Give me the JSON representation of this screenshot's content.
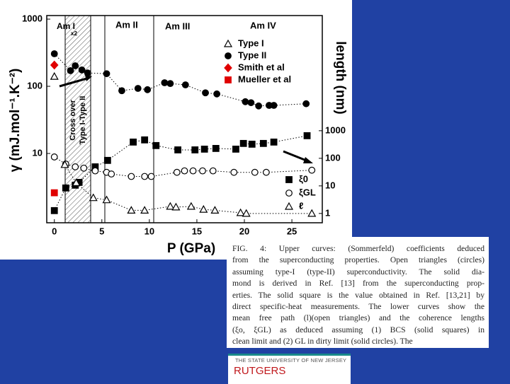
{
  "chart_data": {
    "type": "scatter",
    "y_label": "γ (mJ.mol⁻¹.K⁻²)",
    "y2_label": "length (nm)",
    "x_label": "P (GPa)",
    "annotations": [
      "Am I",
      "Am II",
      "Am III",
      "Am IV",
      "x2",
      "Cross over",
      "Type I-Type II"
    ],
    "xlim": [
      -0.8,
      28.2
    ],
    "xticks": [
      0,
      5,
      10,
      15,
      20,
      25
    ],
    "ylim": [
      0.93,
      1130
    ],
    "yticks": [
      10,
      100,
      1000
    ],
    "ylog": true,
    "y2lim": [
      0.46,
      15000000
    ],
    "y2ticks": [
      1,
      10,
      100,
      1000
    ],
    "y2log": true,
    "series": [
      {
        "name": "Type I",
        "marker": "triangle",
        "filled": false,
        "color": "#000000",
        "line": true,
        "x": [
          0
        ],
        "values": [
          140
        ]
      },
      {
        "name": "Type II",
        "marker": "circle",
        "filled": true,
        "color": "#000000",
        "line": true,
        "x": [
          0,
          1.7,
          2.2,
          2.9,
          3.5,
          5.5,
          7.1,
          8.8,
          9.8,
          11.6,
          12.2,
          13.8,
          15.9,
          17.1,
          20.1,
          20.7,
          21.5,
          22.6,
          23.1,
          26.5
        ],
        "values": [
          305,
          171,
          202,
          175,
          158,
          154,
          86,
          93,
          89,
          113,
          110,
          105,
          80,
          77,
          59,
          57,
          51,
          52,
          52,
          55
        ]
      },
      {
        "name": "Smith et al",
        "marker": "diamond",
        "filled": true,
        "color": "#e00000",
        "line": false,
        "x": [
          0
        ],
        "values": [
          207
        ]
      },
      {
        "name": "Mueller et al",
        "marker": "square",
        "filled": true,
        "color": "#e00000",
        "line": false,
        "x": [
          0
        ],
        "values": [
          2.6
        ]
      },
      {
        "name": "ξ0",
        "marker": "square",
        "filled": true,
        "color": "#000000",
        "line": true,
        "axis": "y2",
        "x": [
          0,
          1.2,
          2.2,
          2.6,
          4.3,
          5.6,
          8.3,
          9.5,
          10.7,
          13.0,
          14.8,
          15.8,
          17.0,
          19.1,
          19.9,
          20.8,
          22.0,
          23.1,
          26.6
        ],
        "values": [
          1.27,
          8.4,
          10.6,
          13.4,
          49,
          84,
          388,
          465,
          290,
          202,
          202,
          215,
          228,
          215,
          346,
          325,
          346,
          388,
          660
        ]
      },
      {
        "name": "ξGL",
        "marker": "circle",
        "filled": false,
        "color": "#000000",
        "line": true,
        "axis": "y2",
        "x": [
          0,
          1.2,
          2.2,
          3.1,
          4.3,
          5.5,
          6.0,
          8.1,
          9.5,
          10.2,
          12.9,
          13.7,
          14.6,
          15.6,
          16.7,
          18.9,
          21.1,
          22.3,
          27.1
        ],
        "values": [
          112,
          62,
          49,
          44,
          35,
          31,
          27,
          22,
          22,
          22,
          31,
          35,
          35,
          35,
          35,
          31,
          31,
          31,
          37
        ]
      },
      {
        "name": "ℓ",
        "marker": "triangle",
        "filled": false,
        "color": "#000000",
        "line": true,
        "axis": "y2",
        "x": [
          1.1,
          2.3,
          4.1,
          5.5,
          8.1,
          9.5,
          12.2,
          12.8,
          14.4,
          15.7,
          16.9,
          19.6,
          20.2,
          27.1
        ],
        "values": [
          59,
          13,
          3.7,
          3.1,
          1.3,
          1.3,
          1.8,
          1.7,
          1.8,
          1.4,
          1.3,
          1.06,
          1,
          1
        ]
      }
    ]
  },
  "caption": {
    "lines": [
      "FIG. 4: Upper curves: (Sommerfeld) coefficients deduced",
      "from the superconducting properties. Open triangles (circles)",
      "assuming type-I (type-II) superconductivity. The solid dia-",
      "mond is derived in Ref. [13] from the superconducting prop-",
      "erties. The solid square is the value obtained in Ref. [13,21] by",
      "direct specific-heat measurements. The lower curves show the",
      "mean free path (l)(open triangles) and the coherence lengths",
      "(ξo, ξGL) as deduced assuming (1) BCS (solid squares) in",
      "clean limit and (2) GL in dirty limit (solid circles). The"
    ]
  },
  "footer": {
    "university": "THE STATE UNIVERSITY OF NEW JERSEY",
    "name": "RUTGERS"
  }
}
